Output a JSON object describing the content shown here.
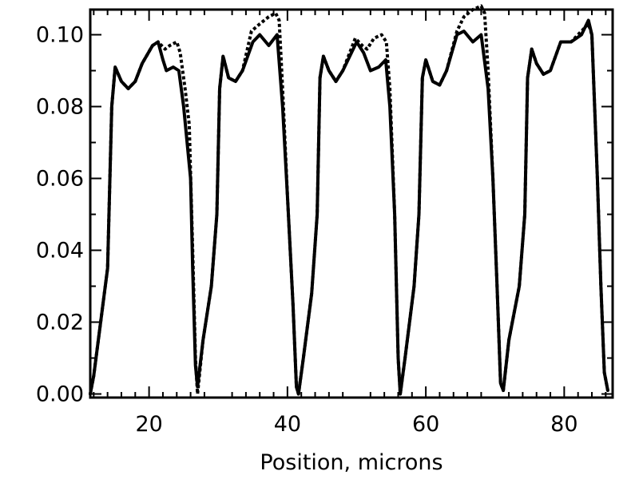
{
  "chart_data": {
    "type": "line",
    "xlabel": "Position, microns",
    "ylabel": "",
    "xlim": [
      11.5,
      87
    ],
    "ylim": [
      -0.001,
      0.107
    ],
    "x_ticks": [
      20,
      40,
      60,
      80
    ],
    "x_tick_labels": [
      "20",
      "40",
      "60",
      "80"
    ],
    "y_ticks": [
      0.0,
      0.02,
      0.04,
      0.06,
      0.08,
      0.1
    ],
    "y_tick_labels": [
      "0.00",
      "0.02",
      "0.04",
      "0.06",
      "0.08",
      "0.10"
    ],
    "grid": false,
    "series": [
      {
        "style": "solid",
        "color": "#000000",
        "points": [
          [
            11.5,
            0.0
          ],
          [
            12.0,
            0.005
          ],
          [
            13.0,
            0.02
          ],
          [
            14.0,
            0.035
          ],
          [
            14.6,
            0.08
          ],
          [
            15.1,
            0.091
          ],
          [
            16.0,
            0.087
          ],
          [
            17.0,
            0.085
          ],
          [
            18.0,
            0.087
          ],
          [
            19.0,
            0.092
          ],
          [
            20.5,
            0.097
          ],
          [
            21.3,
            0.098
          ],
          [
            22.0,
            0.093
          ],
          [
            22.5,
            0.09
          ],
          [
            23.5,
            0.091
          ],
          [
            24.3,
            0.09
          ],
          [
            25.0,
            0.08
          ],
          [
            26.0,
            0.06
          ],
          [
            26.3,
            0.035
          ],
          [
            26.7,
            0.008
          ],
          [
            27.0,
            0.002
          ],
          [
            27.8,
            0.015
          ],
          [
            29.0,
            0.03
          ],
          [
            29.8,
            0.05
          ],
          [
            30.2,
            0.085
          ],
          [
            30.7,
            0.094
          ],
          [
            31.5,
            0.088
          ],
          [
            32.5,
            0.087
          ],
          [
            33.5,
            0.09
          ],
          [
            35.0,
            0.098
          ],
          [
            36.0,
            0.1
          ],
          [
            37.3,
            0.097
          ],
          [
            38.5,
            0.1
          ],
          [
            39.3,
            0.08
          ],
          [
            40.0,
            0.055
          ],
          [
            40.8,
            0.025
          ],
          [
            41.3,
            0.002
          ],
          [
            41.6,
            0.0
          ],
          [
            42.3,
            0.01
          ],
          [
            43.5,
            0.028
          ],
          [
            44.3,
            0.05
          ],
          [
            44.7,
            0.088
          ],
          [
            45.2,
            0.094
          ],
          [
            46.0,
            0.09
          ],
          [
            47.0,
            0.087
          ],
          [
            48.0,
            0.09
          ],
          [
            50.0,
            0.098
          ],
          [
            51.0,
            0.095
          ],
          [
            52.0,
            0.09
          ],
          [
            53.2,
            0.091
          ],
          [
            54.2,
            0.093
          ],
          [
            54.8,
            0.08
          ],
          [
            55.5,
            0.05
          ],
          [
            56.0,
            0.01
          ],
          [
            56.3,
            0.0
          ],
          [
            57.0,
            0.01
          ],
          [
            58.3,
            0.03
          ],
          [
            59.0,
            0.05
          ],
          [
            59.5,
            0.088
          ],
          [
            60.0,
            0.093
          ],
          [
            61.0,
            0.087
          ],
          [
            62.0,
            0.086
          ],
          [
            63.0,
            0.09
          ],
          [
            64.5,
            0.1
          ],
          [
            65.5,
            0.101
          ],
          [
            66.8,
            0.098
          ],
          [
            68.0,
            0.1
          ],
          [
            69.0,
            0.085
          ],
          [
            69.7,
            0.06
          ],
          [
            70.3,
            0.03
          ],
          [
            70.8,
            0.003
          ],
          [
            71.2,
            0.001
          ],
          [
            72.0,
            0.015
          ],
          [
            73.5,
            0.03
          ],
          [
            74.3,
            0.05
          ],
          [
            74.7,
            0.088
          ],
          [
            75.3,
            0.096
          ],
          [
            76.0,
            0.092
          ],
          [
            77.0,
            0.089
          ],
          [
            78.0,
            0.09
          ],
          [
            79.5,
            0.098
          ],
          [
            81.0,
            0.098
          ],
          [
            82.5,
            0.1
          ],
          [
            83.5,
            0.104
          ],
          [
            84.0,
            0.1
          ],
          [
            84.8,
            0.06
          ],
          [
            85.3,
            0.03
          ],
          [
            85.8,
            0.006
          ],
          [
            86.3,
            0.001
          ]
        ]
      },
      {
        "style": "dashed",
        "color": "#000000",
        "points": [
          [
            11.5,
            0.0
          ],
          [
            12.0,
            0.005
          ],
          [
            13.0,
            0.02
          ],
          [
            14.0,
            0.035
          ],
          [
            14.6,
            0.08
          ],
          [
            15.1,
            0.091
          ],
          [
            16.0,
            0.087
          ],
          [
            17.0,
            0.085
          ],
          [
            18.0,
            0.087
          ],
          [
            19.0,
            0.092
          ],
          [
            20.5,
            0.097
          ],
          [
            21.3,
            0.098
          ],
          [
            22.3,
            0.096
          ],
          [
            23.0,
            0.097
          ],
          [
            24.0,
            0.098
          ],
          [
            24.5,
            0.095
          ],
          [
            25.2,
            0.085
          ],
          [
            25.8,
            0.075
          ],
          [
            26.3,
            0.04
          ],
          [
            26.7,
            0.01
          ],
          [
            27.0,
            0.0
          ],
          [
            27.8,
            0.015
          ],
          [
            29.0,
            0.03
          ],
          [
            29.8,
            0.05
          ],
          [
            30.2,
            0.085
          ],
          [
            30.7,
            0.094
          ],
          [
            31.5,
            0.088
          ],
          [
            32.5,
            0.087
          ],
          [
            33.5,
            0.09
          ],
          [
            34.8,
            0.101
          ],
          [
            36.0,
            0.103
          ],
          [
            37.3,
            0.105
          ],
          [
            38.3,
            0.106
          ],
          [
            38.8,
            0.104
          ],
          [
            39.3,
            0.085
          ],
          [
            40.0,
            0.055
          ],
          [
            40.8,
            0.025
          ],
          [
            41.3,
            0.002
          ],
          [
            41.6,
            0.0
          ],
          [
            42.3,
            0.01
          ],
          [
            43.5,
            0.028
          ],
          [
            44.3,
            0.05
          ],
          [
            44.7,
            0.088
          ],
          [
            45.2,
            0.094
          ],
          [
            46.0,
            0.09
          ],
          [
            47.0,
            0.087
          ],
          [
            48.0,
            0.09
          ],
          [
            49.8,
            0.099
          ],
          [
            50.8,
            0.097
          ],
          [
            51.5,
            0.096
          ],
          [
            52.5,
            0.099
          ],
          [
            53.6,
            0.1
          ],
          [
            54.3,
            0.098
          ],
          [
            54.8,
            0.085
          ],
          [
            55.5,
            0.05
          ],
          [
            56.0,
            0.01
          ],
          [
            56.3,
            0.0
          ],
          [
            57.0,
            0.01
          ],
          [
            58.3,
            0.03
          ],
          [
            59.0,
            0.05
          ],
          [
            59.5,
            0.088
          ],
          [
            60.0,
            0.093
          ],
          [
            61.0,
            0.087
          ],
          [
            62.0,
            0.086
          ],
          [
            63.0,
            0.09
          ],
          [
            64.5,
            0.101
          ],
          [
            65.5,
            0.105
          ],
          [
            66.8,
            0.107
          ],
          [
            68.0,
            0.108
          ],
          [
            68.5,
            0.106
          ],
          [
            69.0,
            0.09
          ],
          [
            69.7,
            0.06
          ],
          [
            70.3,
            0.03
          ],
          [
            70.8,
            0.003
          ],
          [
            71.2,
            0.001
          ],
          [
            72.0,
            0.015
          ],
          [
            73.5,
            0.03
          ],
          [
            74.3,
            0.05
          ],
          [
            74.7,
            0.088
          ],
          [
            75.3,
            0.096
          ],
          [
            76.0,
            0.092
          ],
          [
            77.0,
            0.089
          ],
          [
            78.0,
            0.09
          ],
          [
            79.5,
            0.098
          ],
          [
            81.0,
            0.098
          ],
          [
            82.5,
            0.101
          ],
          [
            83.5,
            0.103
          ],
          [
            84.0,
            0.1
          ],
          [
            84.8,
            0.06
          ],
          [
            85.3,
            0.03
          ],
          [
            85.8,
            0.006
          ],
          [
            86.3,
            0.001
          ]
        ]
      }
    ]
  }
}
